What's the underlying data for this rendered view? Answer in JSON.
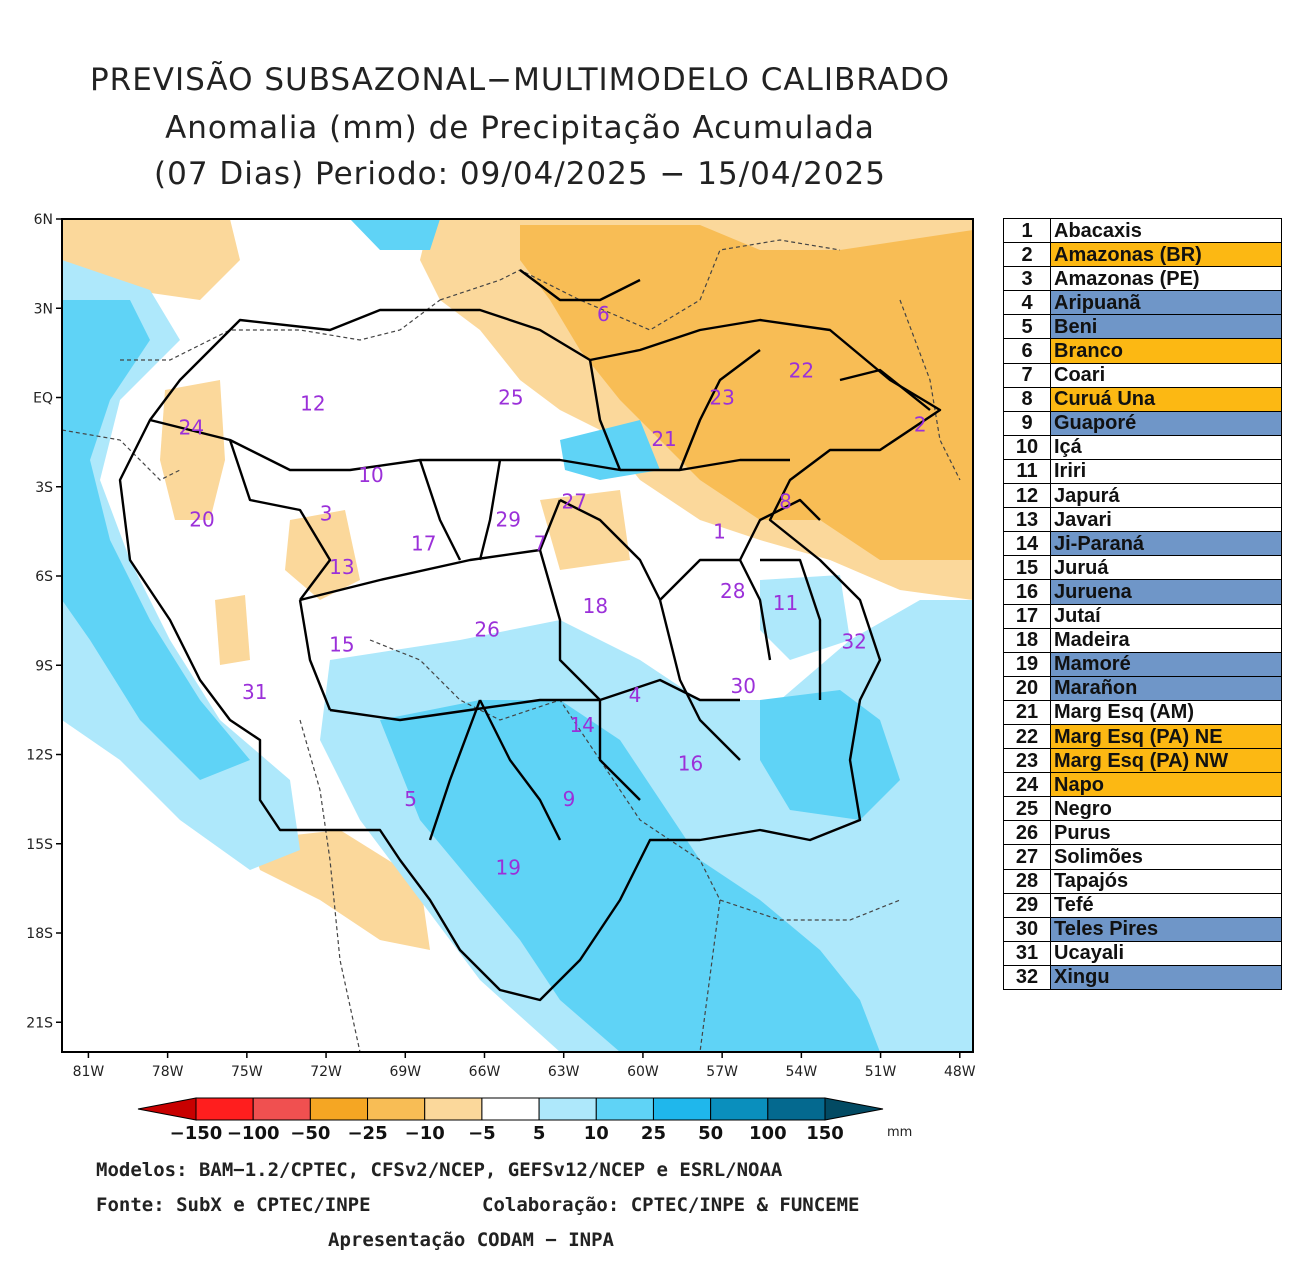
{
  "title": {
    "line1": "PREVISÃO SUBSAZONAL−MULTIMODELO CALIBRADO",
    "line2": "Anomalia (mm) de Precipitação Acumulada",
    "line3": "(07 Dias) Periodo: 09/04/2025 − 15/04/2025"
  },
  "axes": {
    "y_labels": [
      "6N",
      "3N",
      "EQ",
      "3S",
      "6S",
      "9S",
      "12S",
      "15S",
      "18S",
      "21S"
    ],
    "y_values": [
      6,
      3,
      0,
      -3,
      -6,
      -9,
      -12,
      -15,
      -18,
      -21
    ],
    "x_labels": [
      "81W",
      "78W",
      "75W",
      "72W",
      "69W",
      "66W",
      "63W",
      "60W",
      "57W",
      "54W",
      "51W",
      "48W"
    ],
    "x_values": [
      -81,
      -78,
      -75,
      -72,
      -69,
      -66,
      -63,
      -60,
      -57,
      -54,
      -51,
      -48
    ],
    "lon_range": [
      -82,
      -47.5
    ],
    "lat_range": [
      -22,
      6
    ]
  },
  "colorbar": {
    "labels": [
      "−150",
      "−100",
      "−50",
      "−25",
      "−10",
      "−5",
      "5",
      "10",
      "25",
      "50",
      "100",
      "150"
    ],
    "unit": "mm",
    "colors": [
      "#c80000",
      "#ff1e1e",
      "#f05050",
      "#f5a623",
      "#f8bd55",
      "#fbd89b",
      "#ffffff",
      "#aee8fb",
      "#5fd3f6",
      "#1fb7ec",
      "#0a8fbd",
      "#04698f",
      "#024a63"
    ]
  },
  "basin_labels": [
    {
      "n": "1",
      "lon": -57.1,
      "lat": -4.5
    },
    {
      "n": "2",
      "lon": -49.5,
      "lat": -0.9
    },
    {
      "n": "3",
      "lon": -72.0,
      "lat": -3.9
    },
    {
      "n": "4",
      "lon": -60.3,
      "lat": -10.0
    },
    {
      "n": "5",
      "lon": -68.8,
      "lat": -13.5
    },
    {
      "n": "6",
      "lon": -61.5,
      "lat": 2.8
    },
    {
      "n": "7",
      "lon": -63.9,
      "lat": -4.9
    },
    {
      "n": "8",
      "lon": -54.6,
      "lat": -3.5
    },
    {
      "n": "9",
      "lon": -62.8,
      "lat": -13.5
    },
    {
      "n": "10",
      "lon": -70.3,
      "lat": -2.6
    },
    {
      "n": "11",
      "lon": -54.6,
      "lat": -6.9
    },
    {
      "n": "12",
      "lon": -72.5,
      "lat": -0.2
    },
    {
      "n": "13",
      "lon": -71.4,
      "lat": -5.7
    },
    {
      "n": "14",
      "lon": -62.3,
      "lat": -11.0
    },
    {
      "n": "15",
      "lon": -71.4,
      "lat": -8.3
    },
    {
      "n": "16",
      "lon": -58.2,
      "lat": -12.3
    },
    {
      "n": "17",
      "lon": -68.3,
      "lat": -4.9
    },
    {
      "n": "18",
      "lon": -61.8,
      "lat": -7.0
    },
    {
      "n": "19",
      "lon": -65.1,
      "lat": -15.8
    },
    {
      "n": "20",
      "lon": -76.7,
      "lat": -4.1
    },
    {
      "n": "21",
      "lon": -59.2,
      "lat": -1.4
    },
    {
      "n": "22",
      "lon": -54.0,
      "lat": 0.9
    },
    {
      "n": "23",
      "lon": -57.0,
      "lat": 0.0
    },
    {
      "n": "24",
      "lon": -77.1,
      "lat": -1.0
    },
    {
      "n": "25",
      "lon": -65.0,
      "lat": 0.0
    },
    {
      "n": "26",
      "lon": -65.9,
      "lat": -7.8
    },
    {
      "n": "27",
      "lon": -62.6,
      "lat": -3.5
    },
    {
      "n": "28",
      "lon": -56.6,
      "lat": -6.5
    },
    {
      "n": "29",
      "lon": -65.1,
      "lat": -4.1
    },
    {
      "n": "30",
      "lon": -56.2,
      "lat": -9.7
    },
    {
      "n": "31",
      "lon": -74.7,
      "lat": -9.9
    },
    {
      "n": "32",
      "lon": -52.0,
      "lat": -8.2
    }
  ],
  "basin_table": [
    {
      "n": "1",
      "name": "Abacaxis",
      "color": "#ffffff"
    },
    {
      "n": "2",
      "name": "Amazonas (BR)",
      "color": "#fcb813"
    },
    {
      "n": "3",
      "name": "Amazonas (PE)",
      "color": "#ffffff"
    },
    {
      "n": "4",
      "name": "Aripuanã",
      "color": "#6f96c8"
    },
    {
      "n": "5",
      "name": "Beni",
      "color": "#6f96c8"
    },
    {
      "n": "6",
      "name": "Branco",
      "color": "#fcb813"
    },
    {
      "n": "7",
      "name": "Coari",
      "color": "#ffffff"
    },
    {
      "n": "8",
      "name": "Curuá Una",
      "color": "#fcb813"
    },
    {
      "n": "9",
      "name": "Guaporé",
      "color": "#6f96c8"
    },
    {
      "n": "10",
      "name": "Içá",
      "color": "#ffffff"
    },
    {
      "n": "11",
      "name": "Iriri",
      "color": "#ffffff"
    },
    {
      "n": "12",
      "name": "Japurá",
      "color": "#ffffff"
    },
    {
      "n": "13",
      "name": "Javari",
      "color": "#ffffff"
    },
    {
      "n": "14",
      "name": "Ji-Paraná",
      "color": "#6f96c8"
    },
    {
      "n": "15",
      "name": "Juruá",
      "color": "#ffffff"
    },
    {
      "n": "16",
      "name": "Juruena",
      "color": "#6f96c8"
    },
    {
      "n": "17",
      "name": "Jutaí",
      "color": "#ffffff"
    },
    {
      "n": "18",
      "name": "Madeira",
      "color": "#ffffff"
    },
    {
      "n": "19",
      "name": "Mamoré",
      "color": "#6f96c8"
    },
    {
      "n": "20",
      "name": "Marañon",
      "color": "#6f96c8"
    },
    {
      "n": "21",
      "name": "Marg Esq (AM)",
      "color": "#ffffff"
    },
    {
      "n": "22",
      "name": "Marg Esq (PA) NE",
      "color": "#fcb813"
    },
    {
      "n": "23",
      "name": "Marg Esq (PA) NW",
      "color": "#fcb813"
    },
    {
      "n": "24",
      "name": "Napo",
      "color": "#fcb813"
    },
    {
      "n": "25",
      "name": "Negro",
      "color": "#ffffff"
    },
    {
      "n": "26",
      "name": "Purus",
      "color": "#ffffff"
    },
    {
      "n": "27",
      "name": "Solimões",
      "color": "#ffffff"
    },
    {
      "n": "28",
      "name": "Tapajós",
      "color": "#ffffff"
    },
    {
      "n": "29",
      "name": "Tefé",
      "color": "#ffffff"
    },
    {
      "n": "30",
      "name": "Teles Pires",
      "color": "#6f96c8"
    },
    {
      "n": "31",
      "name": "Ucayali",
      "color": "#ffffff"
    },
    {
      "n": "32",
      "name": "Xingu",
      "color": "#6f96c8"
    }
  ],
  "footer": {
    "models": "Modelos: BAM−1.2/CPTEC, CFSv2/NCEP, GEFSv12/NCEP e ESRL/NOAA",
    "source": "Fonte: SubX e CPTEC/INPE",
    "collab": "Colaboração: CPTEC/INPE & FUNCEME",
    "presentation": "Apresentação CODAM − INPA"
  },
  "colors": {
    "label_purple": "#9b30d9",
    "dry_light": "#fbd89b",
    "dry_mid": "#f8bd55",
    "wet_light": "#aee8fb",
    "wet_mid": "#5fd3f6",
    "wet_strong": "#1fb7ec"
  }
}
